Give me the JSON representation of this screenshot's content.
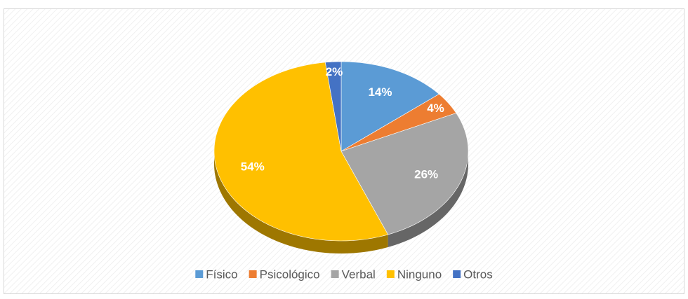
{
  "chart_data": {
    "type": "pie",
    "categories": [
      "Físico",
      "Psicológico",
      "Verbal",
      "Ninguno",
      "Otros"
    ],
    "values": [
      14,
      4,
      26,
      54,
      2
    ],
    "value_labels": [
      "14%",
      "4%",
      "26%",
      "54%",
      "2%"
    ],
    "colors": [
      "#5b9bd5",
      "#ed7d31",
      "#a5a5a5",
      "#ffc000",
      "#4472c4"
    ],
    "legend": "bottom"
  }
}
